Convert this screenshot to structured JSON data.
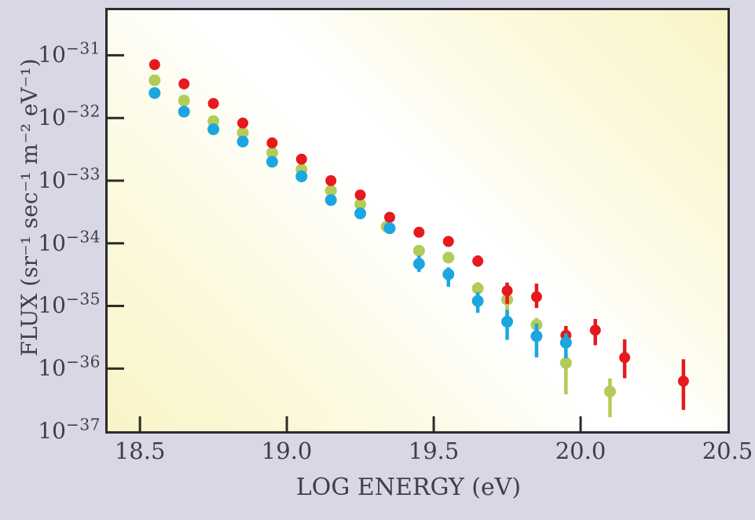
{
  "figure": {
    "page_background": "#d9d7e5",
    "plot_corner_color": "#f9f4c6",
    "plot_band_color": "#ffffff",
    "frame_color": "#2b2b2b",
    "text_color": "#3f3e49"
  },
  "chart_data": {
    "type": "scatter",
    "title": "",
    "xlabel": "LOG ENERGY (eV)",
    "ylabel": "FLUX (sr⁻¹ sec⁻¹ m⁻² eV⁻¹)",
    "x_scale": "linear",
    "y_scale": "log10",
    "grid": false,
    "legend": "none",
    "xlim": [
      18.39,
      20.5
    ],
    "ylim_log10": [
      -37,
      -30.28
    ],
    "x_ticks": [
      {
        "value": 18.5,
        "label": "18.5",
        "tick": true
      },
      {
        "value": 19.0,
        "label": "19.0",
        "tick": true
      },
      {
        "value": 19.5,
        "label": "19.5",
        "tick": true
      },
      {
        "value": 20.0,
        "label": "20.0",
        "tick": true
      },
      {
        "value": 20.5,
        "label": "20.5",
        "tick": false
      }
    ],
    "y_tick_base": "10",
    "y_ticks": [
      {
        "value": -31,
        "exp": "−31",
        "label": "10⁻³¹",
        "tick": true
      },
      {
        "value": -32,
        "exp": "−32",
        "label": "10⁻³²",
        "tick": true
      },
      {
        "value": -33,
        "exp": "−33",
        "label": "10⁻³³",
        "tick": true
      },
      {
        "value": -34,
        "exp": "−34",
        "label": "10⁻³⁴",
        "tick": true
      },
      {
        "value": -35,
        "exp": "−35",
        "label": "10⁻³⁵",
        "tick": true
      },
      {
        "value": -36,
        "exp": "−36",
        "label": "10⁻³⁶",
        "tick": true
      },
      {
        "value": -37,
        "exp": "−37",
        "label": "10⁻³⁷",
        "tick": false
      }
    ],
    "point_columns": [
      "log_energy_eV",
      "flux_sr-1_sec-1_m-2_eV-1",
      "err_up_dex",
      "err_down_dex"
    ],
    "series": [
      {
        "name": "green-series",
        "color": "#b3cb59",
        "marker_radius": 7.5,
        "error_bar_width": 4.5,
        "points": [
          [
            18.55,
            4e-32,
            0.03,
            0.03
          ],
          [
            18.65,
            1.9e-32,
            0.03,
            0.03
          ],
          [
            18.75,
            8.9e-33,
            0.03,
            0.03
          ],
          [
            18.85,
            5.8e-33,
            0.03,
            0.03
          ],
          [
            18.95,
            2.8e-33,
            0.03,
            0.03
          ],
          [
            19.05,
            1.5e-33,
            0.04,
            0.04
          ],
          [
            19.15,
            6.9e-34,
            0.04,
            0.04
          ],
          [
            19.25,
            4.2e-34,
            0.05,
            0.05
          ],
          [
            19.34,
            1.84e-34,
            0.05,
            0.05
          ],
          [
            19.45,
            7.6e-35,
            0.07,
            0.07
          ],
          [
            19.55,
            5.9e-35,
            0.08,
            0.08
          ],
          [
            19.65,
            1.9e-35,
            0.1,
            0.12
          ],
          [
            19.75,
            1.26e-35,
            0.12,
            0.3
          ],
          [
            19.85,
            5e-36,
            0.11,
            0.17
          ],
          [
            19.95,
            1.23e-36,
            0.15,
            0.5
          ],
          [
            20.1,
            4.3e-37,
            0.21,
            0.41
          ]
        ]
      },
      {
        "name": "red-series",
        "color": "#e6191f",
        "marker_radius": 7,
        "error_bar_width": 4.5,
        "points": [
          [
            18.55,
            7.1e-32,
            0.03,
            0.03
          ],
          [
            18.65,
            3.5e-32,
            0.03,
            0.03
          ],
          [
            18.75,
            1.7e-32,
            0.03,
            0.03
          ],
          [
            18.85,
            8.3e-33,
            0.03,
            0.03
          ],
          [
            18.95,
            4e-33,
            0.03,
            0.03
          ],
          [
            19.05,
            2.2e-33,
            0.04,
            0.04
          ],
          [
            19.15,
            1e-33,
            0.04,
            0.04
          ],
          [
            19.25,
            5.9e-34,
            0.05,
            0.05
          ],
          [
            19.35,
            2.6e-34,
            0.05,
            0.05
          ],
          [
            19.45,
            1.5e-34,
            0.06,
            0.06
          ],
          [
            19.55,
            1.07e-34,
            0.07,
            0.07
          ],
          [
            19.65,
            5.2e-35,
            0.09,
            0.09
          ],
          [
            19.75,
            1.75e-35,
            0.13,
            0.21
          ],
          [
            19.85,
            1.4e-35,
            0.21,
            0.18
          ],
          [
            19.95,
            3.4e-36,
            0.15,
            0.15
          ],
          [
            20.05,
            4.1e-36,
            0.18,
            0.24
          ],
          [
            20.15,
            1.5e-36,
            0.29,
            0.33
          ],
          [
            20.35,
            6.3e-37,
            0.35,
            0.46
          ]
        ]
      },
      {
        "name": "blue-series",
        "color": "#1ca6e0",
        "marker_radius": 7.5,
        "error_bar_width": 4.5,
        "points": [
          [
            18.55,
            2.5e-32,
            0.03,
            0.03
          ],
          [
            18.65,
            1.26e-32,
            0.03,
            0.03
          ],
          [
            18.75,
            6.6e-33,
            0.03,
            0.03
          ],
          [
            18.85,
            4.2e-33,
            0.03,
            0.03
          ],
          [
            18.95,
            2e-33,
            0.03,
            0.03
          ],
          [
            19.05,
            1.17e-33,
            0.04,
            0.04
          ],
          [
            19.15,
            4.9e-34,
            0.04,
            0.04
          ],
          [
            19.25,
            3e-34,
            0.05,
            0.05
          ],
          [
            19.35,
            1.74e-34,
            0.05,
            0.05
          ],
          [
            19.45,
            4.7e-35,
            0.13,
            0.13
          ],
          [
            19.55,
            3.2e-35,
            0.11,
            0.2
          ],
          [
            19.65,
            1.2e-35,
            0.14,
            0.19
          ],
          [
            19.75,
            5.6e-36,
            0.19,
            0.29
          ],
          [
            19.85,
            3.3e-36,
            0.2,
            0.34
          ],
          [
            19.95,
            2.6e-36,
            0.15,
            0.25
          ]
        ]
      }
    ]
  }
}
